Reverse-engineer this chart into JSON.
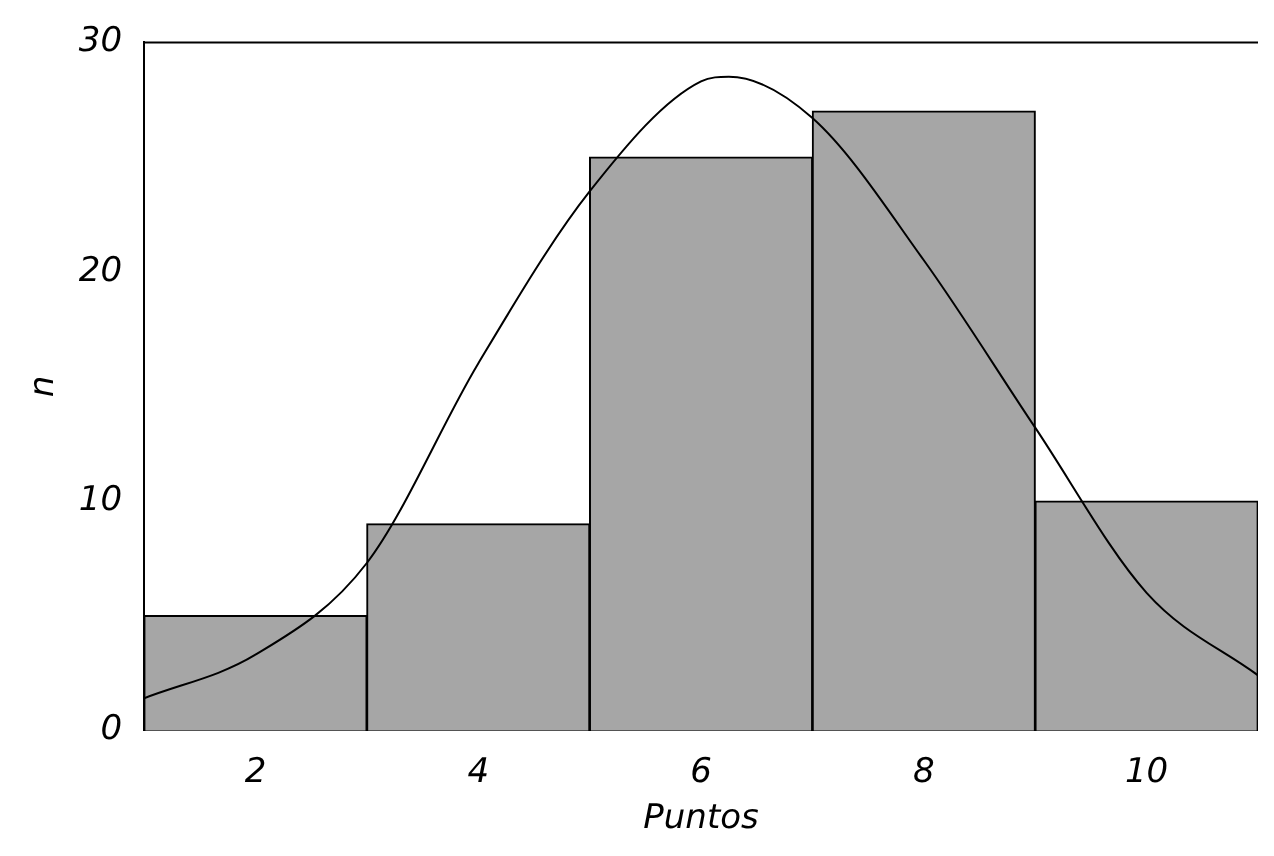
{
  "chart_data": {
    "type": "histogram",
    "xlabel": "Puntos",
    "ylabel": "n",
    "bins": [
      1,
      3,
      5,
      7,
      9,
      11
    ],
    "values": [
      5,
      9,
      25,
      27,
      10
    ],
    "color": "#a6a6a6",
    "series": [
      {
        "type": "line",
        "color": "#000000",
        "x": [
          1,
          2,
          3,
          4,
          5,
          6,
          6.25,
          7,
          8,
          9,
          10,
          11
        ],
        "values": [
          1.4,
          3.3,
          7.3,
          16,
          23.5,
          28.3,
          28.5,
          26.7,
          20.5,
          13.2,
          6,
          2.4
        ]
      }
    ],
    "xlim": [
      1,
      11
    ],
    "ylim": [
      0,
      30
    ],
    "xticks": [
      2,
      4,
      6,
      8,
      10
    ],
    "yticks": [
      0,
      10,
      20,
      30
    ],
    "grid": false,
    "legend": false,
    "marker": "none"
  }
}
